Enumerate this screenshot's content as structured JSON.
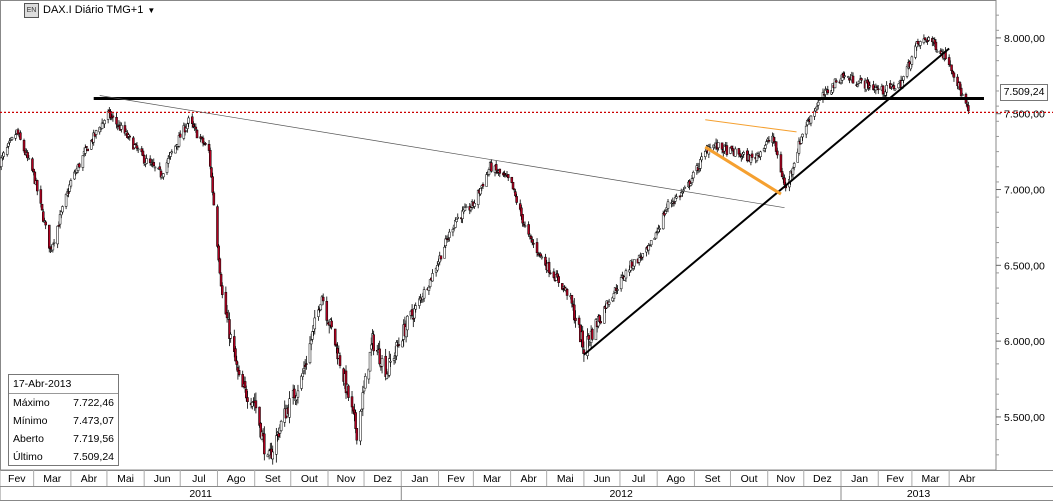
{
  "window": {
    "title": "DAX.I Diário TMG+1",
    "icon": "chart-window-icon",
    "has_dropdown": true
  },
  "info_box": {
    "date": "17-Abr-2013",
    "rows": [
      {
        "label": "Máximo",
        "value": "7.722,46"
      },
      {
        "label": "Mínimo",
        "value": "7.473,07"
      },
      {
        "label": "Aberto",
        "value": "7.719,56"
      },
      {
        "label": "Último",
        "value": "7.509,24"
      }
    ]
  },
  "price_tag": {
    "label": "7.509,24",
    "value": 7509.24,
    "color": "#cc0000"
  },
  "colors": {
    "up_candle": "#ffffff",
    "down_candle": "#b00020",
    "trendline": "#000000",
    "orange_line": "#f5a030",
    "red_dotted": "#cc0000",
    "grid": "#bbbbbb"
  },
  "chart_data": {
    "type": "candlestick",
    "title": "DAX.I Diário TMG+1",
    "xlabel": "",
    "ylabel": "",
    "ylim": [
      5150,
      8250
    ],
    "y_ticks": [
      {
        "value": 8000,
        "label": "8.000,00"
      },
      {
        "value": 7500,
        "label": "7.500,00"
      },
      {
        "value": 7000,
        "label": "7.000,00"
      },
      {
        "value": 6500,
        "label": "6.500,00"
      },
      {
        "value": 6000,
        "label": "6.000,00"
      },
      {
        "value": 5500,
        "label": "5.500,00"
      }
    ],
    "x_month_labels": [
      "Fev",
      "Mar",
      "Abr",
      "Mai",
      "Jun",
      "Jul",
      "Ago",
      "Set",
      "Out",
      "Nov",
      "Dez",
      "Jan",
      "Fev",
      "Mar",
      "Abr",
      "Mai",
      "Jun",
      "Jul",
      "Ago",
      "Set",
      "Out",
      "Nov",
      "Dez",
      "Jan",
      "Fev",
      "Mar",
      "Abr"
    ],
    "x_year_labels": [
      "2011",
      "2012",
      "2013"
    ],
    "x_range": [
      "2011-02-01",
      "2013-05-10"
    ],
    "anchor_closes": [
      [
        "2011-02-01",
        7180
      ],
      [
        "2011-02-15",
        7380
      ],
      [
        "2011-03-01",
        7100
      ],
      [
        "2011-03-15",
        6600
      ],
      [
        "2011-04-01",
        7050
      ],
      [
        "2011-04-15",
        7280
      ],
      [
        "2011-05-02",
        7500
      ],
      [
        "2011-05-15",
        7380
      ],
      [
        "2011-06-01",
        7200
      ],
      [
        "2011-06-15",
        7100
      ],
      [
        "2011-07-01",
        7350
      ],
      [
        "2011-07-08",
        7450
      ],
      [
        "2011-07-25",
        7250
      ],
      [
        "2011-08-05",
        6300
      ],
      [
        "2011-08-20",
        5700
      ],
      [
        "2011-09-01",
        5600
      ],
      [
        "2011-09-12",
        5200
      ],
      [
        "2011-09-25",
        5500
      ],
      [
        "2011-10-10",
        5750
      ],
      [
        "2011-10-27",
        6300
      ],
      [
        "2011-11-10",
        5900
      ],
      [
        "2011-11-25",
        5400
      ],
      [
        "2011-12-08",
        6000
      ],
      [
        "2011-12-20",
        5800
      ],
      [
        "2012-01-05",
        6100
      ],
      [
        "2012-01-25",
        6400
      ],
      [
        "2012-02-15",
        6800
      ],
      [
        "2012-03-01",
        6900
      ],
      [
        "2012-03-15",
        7150
      ],
      [
        "2012-04-01",
        7050
      ],
      [
        "2012-04-15",
        6700
      ],
      [
        "2012-05-01",
        6500
      ],
      [
        "2012-05-20",
        6300
      ],
      [
        "2012-06-01",
        5950
      ],
      [
        "2012-06-20",
        6250
      ],
      [
        "2012-07-10",
        6500
      ],
      [
        "2012-07-25",
        6600
      ],
      [
        "2012-08-10",
        6900
      ],
      [
        "2012-08-25",
        7000
      ],
      [
        "2012-09-14",
        7300
      ],
      [
        "2012-10-01",
        7250
      ],
      [
        "2012-10-20",
        7200
      ],
      [
        "2012-11-05",
        7350
      ],
      [
        "2012-11-16",
        7000
      ],
      [
        "2012-12-01",
        7400
      ],
      [
        "2012-12-15",
        7600
      ],
      [
        "2013-01-02",
        7750
      ],
      [
        "2013-01-20",
        7700
      ],
      [
        "2013-02-05",
        7650
      ],
      [
        "2013-02-20",
        7700
      ],
      [
        "2013-03-05",
        7950
      ],
      [
        "2013-03-15",
        8000
      ],
      [
        "2013-04-01",
        7850
      ],
      [
        "2013-04-17",
        7509
      ]
    ],
    "lines": [
      {
        "name": "horizontal-resistance",
        "from": [
          "2011-04-20",
          7600
        ],
        "to": [
          "2013-04-30",
          7600
        ],
        "color": "#000000"
      },
      {
        "name": "red-dotted-price-line",
        "from": [
          "2011-02-01",
          7509
        ],
        "to": [
          "2013-05-10",
          7509
        ],
        "color": "#cc0000",
        "dashed": true
      },
      {
        "name": "long-downtrend-line",
        "from": [
          "2011-04-25",
          7620
        ],
        "to": [
          "2012-11-15",
          6880
        ],
        "color": "#000000"
      },
      {
        "name": "uptrend-line",
        "from": [
          "2012-06-01",
          5910
        ],
        "to": [
          "2013-04-01",
          7930
        ],
        "color": "#000000"
      },
      {
        "name": "orange-upper-line",
        "from": [
          "2012-09-10",
          7460
        ],
        "to": [
          "2012-11-25",
          7380
        ],
        "color": "#f5a030"
      },
      {
        "name": "orange-lower-line",
        "from": [
          "2012-09-10",
          7280
        ],
        "to": [
          "2012-11-12",
          6970
        ],
        "color": "#f5a030"
      }
    ]
  }
}
